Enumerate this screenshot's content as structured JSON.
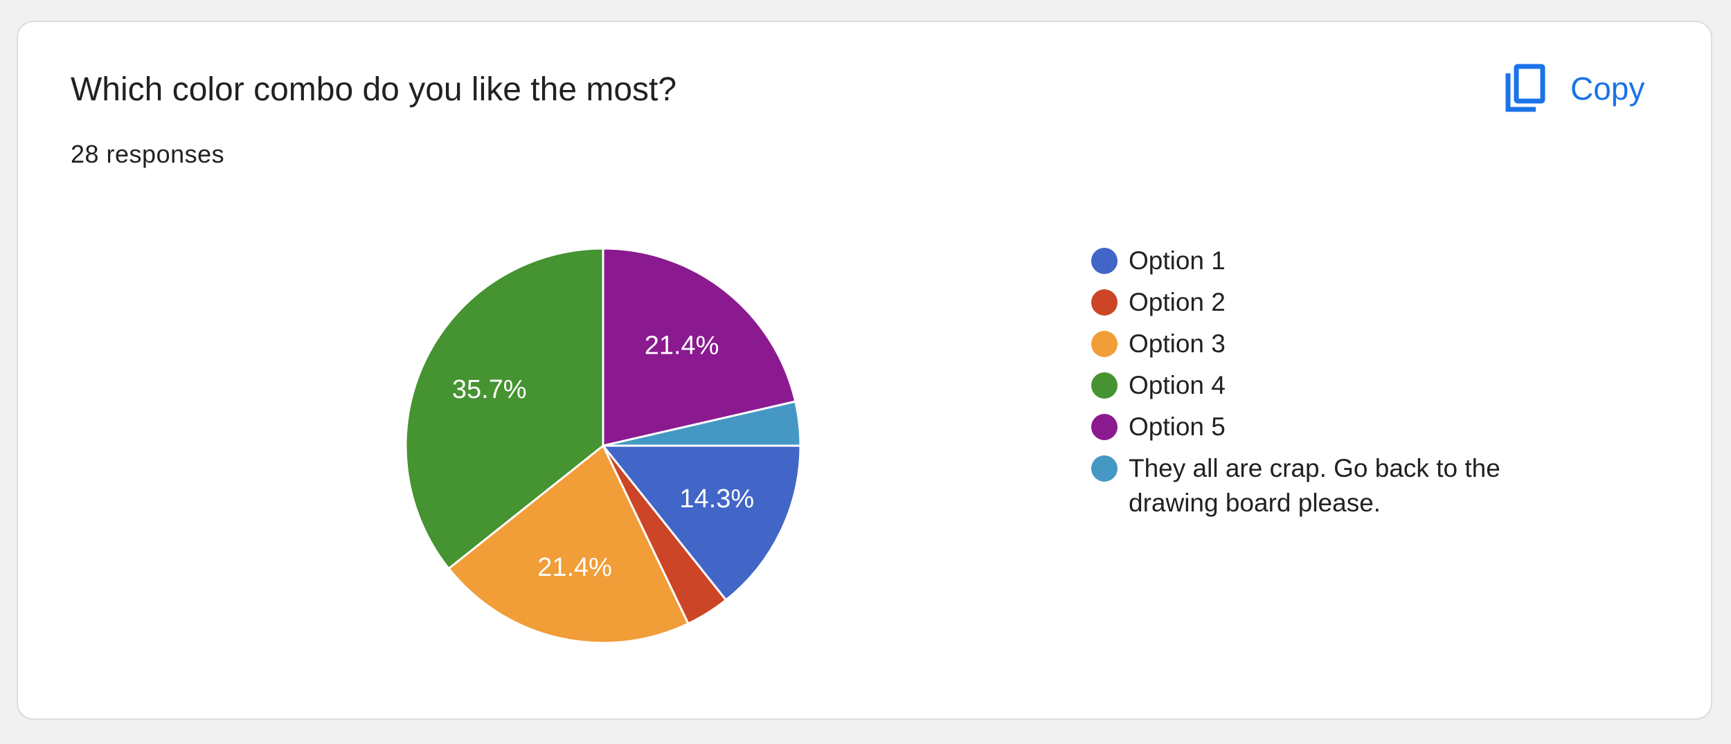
{
  "copy_label": "Copy",
  "chart_data": {
    "type": "pie",
    "title": "Which color combo do you like the most?",
    "subtitle": "28 responses",
    "categories": [
      "Option 1",
      "Option 2",
      "Option 3",
      "Option 4",
      "Option 5",
      "They all are crap. Go back to the drawing board please."
    ],
    "values": [
      14.3,
      3.6,
      21.4,
      35.7,
      21.4,
      3.6
    ],
    "value_labels": [
      "14.3%",
      null,
      "21.4%",
      "35.7%",
      "21.4%",
      null
    ],
    "colors": [
      "#4266c7",
      "#cc4526",
      "#f19d38",
      "#459331",
      "#8b1a91",
      "#4598c3"
    ]
  }
}
